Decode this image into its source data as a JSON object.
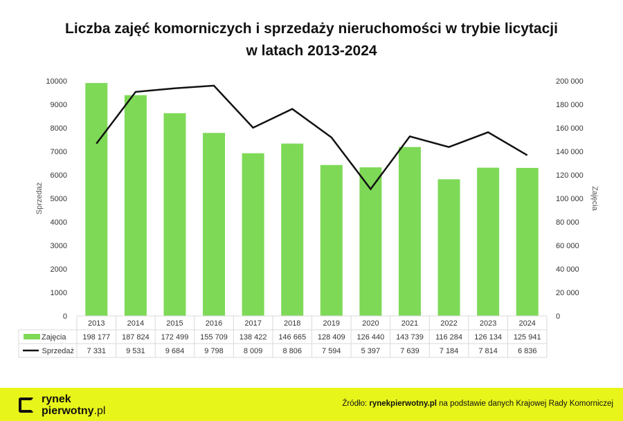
{
  "chart_data": {
    "type": "bar+line",
    "title_line1": "Liczba zajęć komorniczych i sprzedaży nieruchomości w trybie licytacji",
    "title_line2": "w latach 2013-2024",
    "categories": [
      "2013",
      "2014",
      "2015",
      "2016",
      "2017",
      "2018",
      "2019",
      "2020",
      "2021",
      "2022",
      "2023",
      "2024"
    ],
    "series": [
      {
        "name": "Zajęcia",
        "type": "bar",
        "axis": "right",
        "color": "#7ed957",
        "values": [
          198177,
          187824,
          172499,
          155709,
          138422,
          146665,
          128409,
          126440,
          143739,
          116284,
          126134,
          125941
        ],
        "labels": [
          "198 177",
          "187 824",
          "172 499",
          "155 709",
          "138 422",
          "146 665",
          "128 409",
          "126 440",
          "143 739",
          "116 284",
          "126 134",
          "125 941"
        ]
      },
      {
        "name": "Sprzedaż",
        "type": "line",
        "axis": "left",
        "color": "#111111",
        "values": [
          7331,
          9531,
          9684,
          9798,
          8009,
          8806,
          7594,
          5397,
          7639,
          7184,
          7814,
          6836
        ],
        "labels": [
          "7 331",
          "9 531",
          "9 684",
          "9 798",
          "8 009",
          "8 806",
          "7 594",
          "5 397",
          "7 639",
          "7 184",
          "7 814",
          "6 836"
        ]
      }
    ],
    "ylabel_left": "Sprzedaż",
    "ylabel_right": "Zajęcia",
    "ylim_left": [
      0,
      10000
    ],
    "ylim_right": [
      0,
      200000
    ],
    "yticks_left": [
      "0",
      "1000",
      "2000",
      "3000",
      "4000",
      "5000",
      "6000",
      "7000",
      "8000",
      "9000",
      "10000"
    ],
    "yticks_right": [
      "0",
      "20 000",
      "40 000",
      "60 000",
      "80 000",
      "100 000",
      "120 000",
      "140 000",
      "160 000",
      "180 000",
      "200 000"
    ],
    "grid": false,
    "legend": "data-table"
  },
  "footer": {
    "logo_line1": "rynek",
    "logo_line2": "pierwotny",
    "logo_suffix": ".pl",
    "source_prefix": "Źródło: ",
    "source_site": "rynekpierwotny.pl",
    "source_rest": " na podstawie danych Krajowej Rady Komorniczej"
  }
}
